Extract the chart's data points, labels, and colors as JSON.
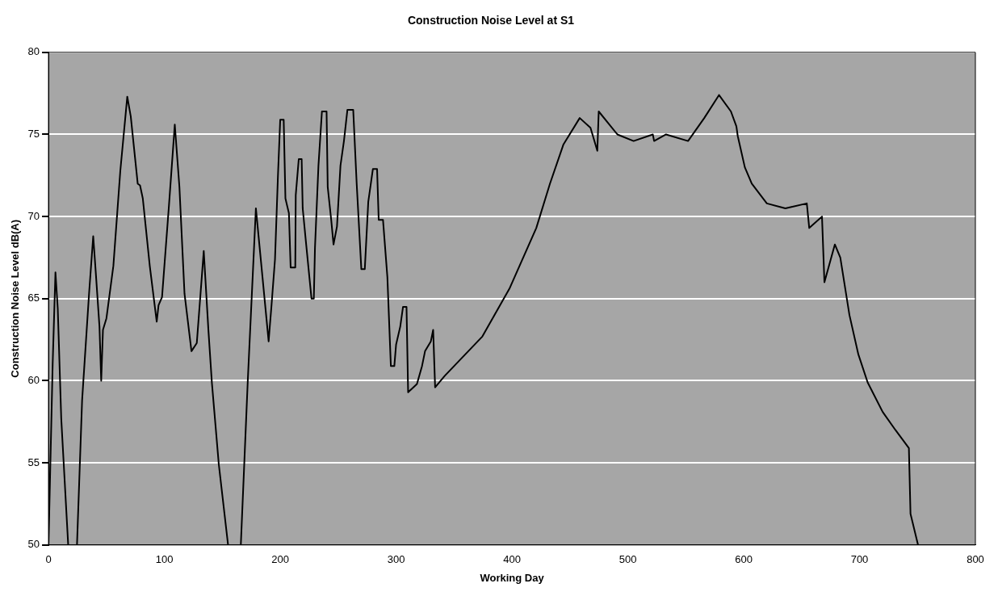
{
  "chart_data": {
    "type": "line",
    "title": "Construction Noise Level at S1",
    "xlabel": "Working Day",
    "ylabel": "Construction Noise Level dB(A)",
    "x": [
      0,
      3.6,
      6,
      8,
      11,
      17,
      20,
      24.6,
      29,
      35,
      38.6,
      41,
      44,
      45.5,
      47,
      50,
      56,
      62,
      68,
      71,
      77,
      79,
      81.4,
      87.4,
      93.4,
      95,
      98,
      104,
      109,
      113,
      117.4,
      123.4,
      128,
      134,
      138,
      141,
      147,
      155,
      160,
      166,
      169,
      172,
      179,
      190,
      191,
      192.5,
      195.5,
      198,
      200,
      203,
      204.5,
      207.5,
      209,
      213,
      213.4,
      216,
      218.5,
      219.4,
      222.4,
      227,
      229,
      230,
      233,
      236,
      240,
      241,
      244,
      246,
      249,
      252,
      255,
      258,
      263,
      266,
      270,
      273,
      276,
      280,
      283.6,
      285,
      288.7,
      292.5,
      295.5,
      298.5,
      300,
      303.6,
      306,
      309,
      310.4,
      318,
      322.4,
      325,
      330,
      332,
      333.7,
      342,
      374.5,
      397.8,
      421,
      432.8,
      444.5,
      458.5,
      467.8,
      473.7,
      474.9,
      491,
      505,
      521.6,
      522.7,
      533,
      552,
      566,
      578.7,
      589,
      593.7,
      594.9,
      601,
      607,
      620,
      636,
      654.5,
      656.6,
      667.6,
      669.7,
      678.7,
      683.4,
      691.3,
      699,
      707,
      720,
      731,
      742.6,
      744,
      750.5
    ],
    "series": [
      {
        "color": "#000000",
        "values": [
          50,
          61,
          66.6,
          64.4,
          57.7,
          50,
          null,
          50,
          58.8,
          65.3,
          68.8,
          66.4,
          63.3,
          60,
          63.1,
          63.8,
          67,
          72.8,
          77.3,
          76.1,
          72,
          71.9,
          71.1,
          67,
          63.6,
          64.6,
          65.1,
          70.7,
          75.6,
          71.8,
          65.3,
          61.8,
          62.3,
          67.9,
          63.1,
          59.9,
          54.9,
          50,
          null,
          50,
          55,
          60,
          70.5,
          62.4,
          63.3,
          64.6,
          67.4,
          72.4,
          75.9,
          75.9,
          71.1,
          70.2,
          66.9,
          66.9,
          71.3,
          73.5,
          73.5,
          70.5,
          68.3,
          65,
          65,
          68.1,
          73.1,
          76.4,
          76.4,
          71.8,
          69.8,
          68.3,
          69.4,
          73.1,
          74.6,
          76.5,
          76.5,
          72,
          66.8,
          66.8,
          70.9,
          72.9,
          72.9,
          69.8,
          69.8,
          66.3,
          60.9,
          60.9,
          62.2,
          63.3,
          64.5,
          64.5,
          59.3,
          59.8,
          60.9,
          61.8,
          62.4,
          63.1,
          59.6,
          60.3,
          62.7,
          65.6,
          69.3,
          72,
          74.4,
          76,
          75.4,
          74,
          76.4,
          75,
          74.6,
          75,
          74.6,
          75,
          74.6,
          76,
          77.4,
          76.4,
          75.5,
          74.9,
          73,
          72,
          70.8,
          70.5,
          70.8,
          69.3,
          70,
          66,
          68.3,
          67.5,
          64,
          61.6,
          59.9,
          58.1,
          57,
          55.9,
          51.9,
          50
        ]
      }
    ],
    "xlim": [
      0,
      800
    ],
    "xticks": [
      0,
      100,
      200,
      300,
      400,
      500,
      600,
      700,
      800
    ],
    "ylim": [
      50,
      80
    ],
    "yticks": [
      50,
      55,
      60,
      65,
      70,
      75,
      80
    ],
    "grid": "y",
    "legend": false,
    "marker": "none",
    "line_style": "solid"
  }
}
